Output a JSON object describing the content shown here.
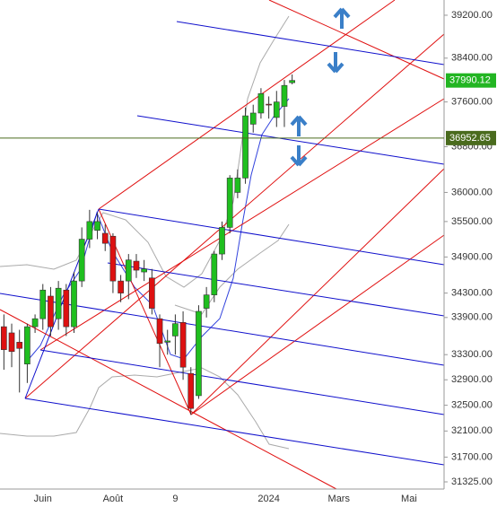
{
  "chart_data": {
    "type": "candlestick",
    "categories": [
      null,
      null,
      null,
      null,
      null,
      "Juin",
      null,
      null,
      null,
      null,
      null,
      null,
      null,
      null,
      "Août",
      null,
      null,
      null,
      null,
      null,
      null,
      null,
      "9",
      null,
      null,
      null,
      null,
      null,
      null,
      null,
      null,
      null,
      null,
      null,
      "2024",
      null,
      null,
      null,
      null,
      null,
      null,
      null,
      null,
      "Mars",
      null,
      null,
      null,
      null,
      null,
      null,
      null,
      null,
      "Mai",
      null,
      null,
      null,
      null
    ],
    "open": [
      33750,
      33650,
      33500,
      33150,
      33750,
      33880,
      34250,
      33880,
      34350,
      33750,
      34500,
      35200,
      35350,
      35300,
      35250,
      34500,
      34500,
      34830,
      34650,
      34550,
      33880,
      33500,
      33600,
      33820,
      33000,
      32650,
      34050,
      34270,
      34950,
      35400,
      36000,
      36250,
      37200,
      37400,
      37560,
      37320,
      37520,
      37950,
      null,
      null,
      null,
      null,
      null,
      null,
      null,
      null,
      null,
      null,
      null,
      null,
      null,
      null,
      null,
      null,
      null,
      null,
      null
    ],
    "high": [
      33950,
      33800,
      33700,
      33800,
      33950,
      34450,
      34400,
      34500,
      34450,
      34650,
      35400,
      35700,
      35650,
      35450,
      35300,
      34600,
      34950,
      34950,
      34850,
      34700,
      33950,
      33700,
      33950,
      34000,
      33100,
      34100,
      34400,
      35000,
      35500,
      36300,
      36400,
      37500,
      37550,
      37850,
      37700,
      37800,
      38000,
      38100,
      null,
      null,
      null,
      null,
      null,
      null,
      null,
      null,
      null,
      null,
      null,
      null,
      null,
      null,
      null,
      null,
      null,
      null,
      null
    ],
    "low": [
      33060,
      33100,
      32700,
      32850,
      33650,
      33700,
      33600,
      33700,
      33600,
      33650,
      34400,
      35050,
      35200,
      35000,
      34300,
      34150,
      34200,
      34550,
      34500,
      33950,
      33100,
      33300,
      33300,
      32900,
      32350,
      32600,
      33900,
      34150,
      34850,
      35300,
      35900,
      36150,
      37050,
      37300,
      37300,
      37150,
      37150,
      37920,
      null,
      null,
      null,
      null,
      null,
      null,
      null,
      null,
      null,
      null,
      null,
      null,
      null,
      null,
      null,
      null,
      null,
      null,
      null
    ],
    "close": [
      33380,
      33350,
      33400,
      33750,
      33880,
      34350,
      33750,
      34380,
      33750,
      34500,
      35200,
      35500,
      35500,
      35130,
      34500,
      34300,
      34850,
      34680,
      34700,
      34050,
      33480,
      33520,
      33800,
      33100,
      32450,
      34000,
      34270,
      34950,
      35400,
      36250,
      36250,
      37350,
      37400,
      37750,
      37550,
      37600,
      37900,
      37990.12,
      null,
      null,
      null,
      null,
      null,
      null,
      null,
      null,
      null,
      null,
      null,
      null,
      null,
      null,
      null,
      null,
      null,
      null,
      null
    ],
    "up_color": "#1fbf1f",
    "down_color": "#dd1111",
    "log_scale": true,
    "ylim": [
      31217,
      39488
    ],
    "yticks": [
      {
        "value": 31325,
        "label": "31325.00"
      },
      {
        "value": 31700,
        "label": "31700.00"
      },
      {
        "value": 32100,
        "label": "32100.00"
      },
      {
        "value": 32500,
        "label": "32500.00"
      },
      {
        "value": 32900,
        "label": "32900.00"
      },
      {
        "value": 33300,
        "label": "33300.00"
      },
      {
        "value": 33900,
        "label": "33900.00"
      },
      {
        "value": 34300,
        "label": "34300.00"
      },
      {
        "value": 34900,
        "label": "34900.00"
      },
      {
        "value": 35500,
        "label": "35500.00"
      },
      {
        "value": 36000,
        "label": "36000.00"
      },
      {
        "value": 36800,
        "label": "36800.00"
      },
      {
        "value": 37600,
        "label": "37600.00"
      },
      {
        "value": 38400,
        "label": "38400.00"
      },
      {
        "value": 39200,
        "label": "39200.00"
      }
    ],
    "markers": [
      {
        "value": 37990.12,
        "color": "#22b522",
        "line": false
      },
      {
        "value": 36952.65,
        "color": "#4a6b1e",
        "line": true
      }
    ]
  }
}
